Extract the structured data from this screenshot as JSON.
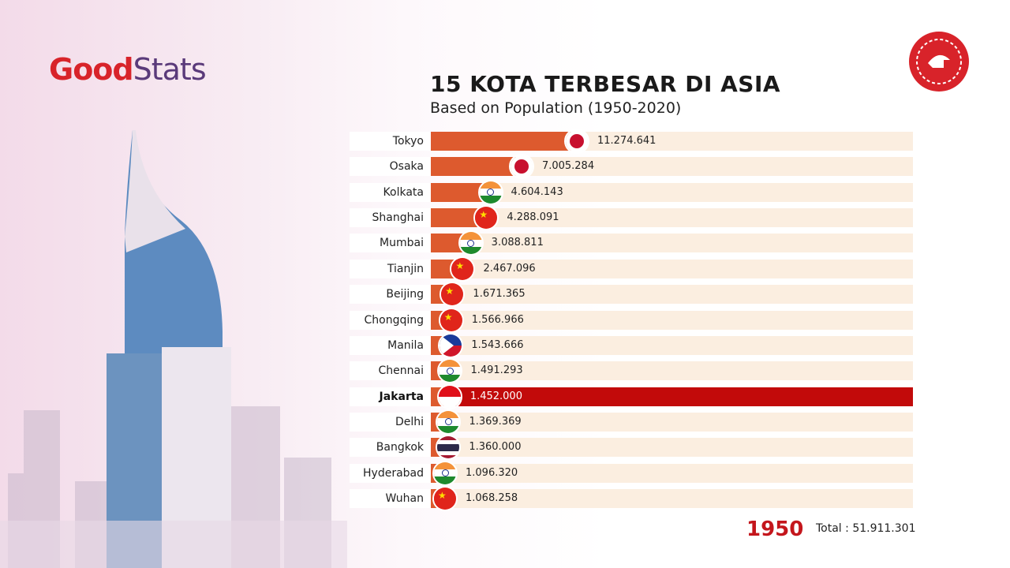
{
  "brand": {
    "logo": "GoodStats",
    "logo_part1": "Good",
    "logo_part2": "Stats"
  },
  "colors": {
    "bar": "#dd5a2e",
    "track": "#fbeee0",
    "highlight": "#c20a0a",
    "year": "#c4161c",
    "brand_red": "#d8232a"
  },
  "chart_data": {
    "type": "bar",
    "orientation": "horizontal",
    "title": "15 KOTA TERBESAR DI ASIA",
    "subtitle": "Based on Population (1950-2020)",
    "year": "1950",
    "total_label": "Total : 51.911.301",
    "highlight": "Jakarta",
    "categories": [
      "Tokyo",
      "Osaka",
      "Kolkata",
      "Shanghai",
      "Mumbai",
      "Tianjin",
      "Beijing",
      "Chongqing",
      "Manila",
      "Chennai",
      "Jakarta",
      "Delhi",
      "Bangkok",
      "Hyderabad",
      "Wuhan"
    ],
    "values": [
      11274641,
      7005284,
      4604143,
      4288091,
      3088811,
      2467096,
      1671365,
      1566966,
      1543666,
      1491293,
      1452000,
      1369369,
      1360000,
      1096320,
      1068258
    ],
    "value_labels": [
      "11.274.641",
      "7.005.284",
      "4.604.143",
      "4.288.091",
      "3.088.811",
      "2.467.096",
      "1.671.365",
      "1.566.966",
      "1.543.666",
      "1.491.293",
      "1.452.000",
      "1.369.369",
      "1.360.000",
      "1.096.320",
      "1.068.258"
    ],
    "flags": [
      "japan",
      "japan",
      "india",
      "china",
      "india",
      "china",
      "china",
      "china",
      "philippines",
      "india",
      "indonesia",
      "india",
      "thailand",
      "india",
      "china"
    ]
  }
}
